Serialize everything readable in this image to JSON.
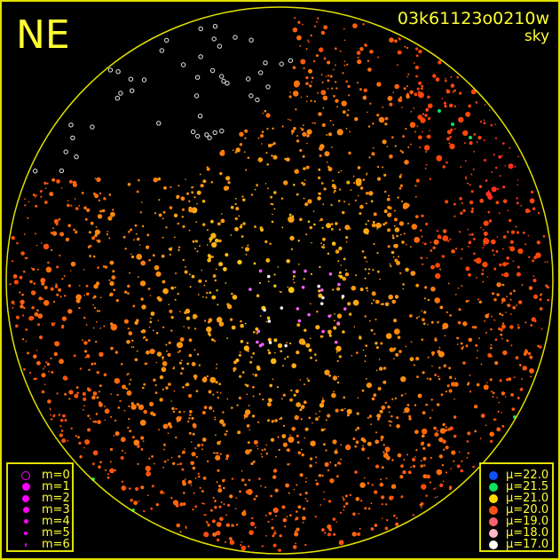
{
  "chart_data": {
    "type": "scatter",
    "title": "03k61123o0210w",
    "subtitle": "sky",
    "direction_label": "NE",
    "frame_color": "#e0e000",
    "magnitude_legend": [
      {
        "label": "m=0",
        "style": "ring"
      },
      {
        "label": "m=1",
        "style": "dot"
      },
      {
        "label": "m=2",
        "style": "dot"
      },
      {
        "label": "m=3",
        "style": "dot"
      },
      {
        "label": "m=4",
        "style": "dot"
      },
      {
        "label": "m=5",
        "style": "dot"
      },
      {
        "label": "m=6",
        "style": "dot"
      }
    ],
    "magnitude_legend_color": "#ff00ff",
    "sky_brightness_legend": [
      {
        "label": "μ=22.0",
        "color": "#1050ff"
      },
      {
        "label": "μ=21.5",
        "color": "#10e060"
      },
      {
        "label": "μ=21.0",
        "color": "#ffd800"
      },
      {
        "label": "μ=20.0",
        "color": "#ff5010"
      },
      {
        "label": "μ=19.0",
        "color": "#ff6070"
      },
      {
        "label": "μ=18.0",
        "color": "#ffb8c8"
      },
      {
        "label": "μ=17.0",
        "color": "#ffffff"
      }
    ]
  }
}
